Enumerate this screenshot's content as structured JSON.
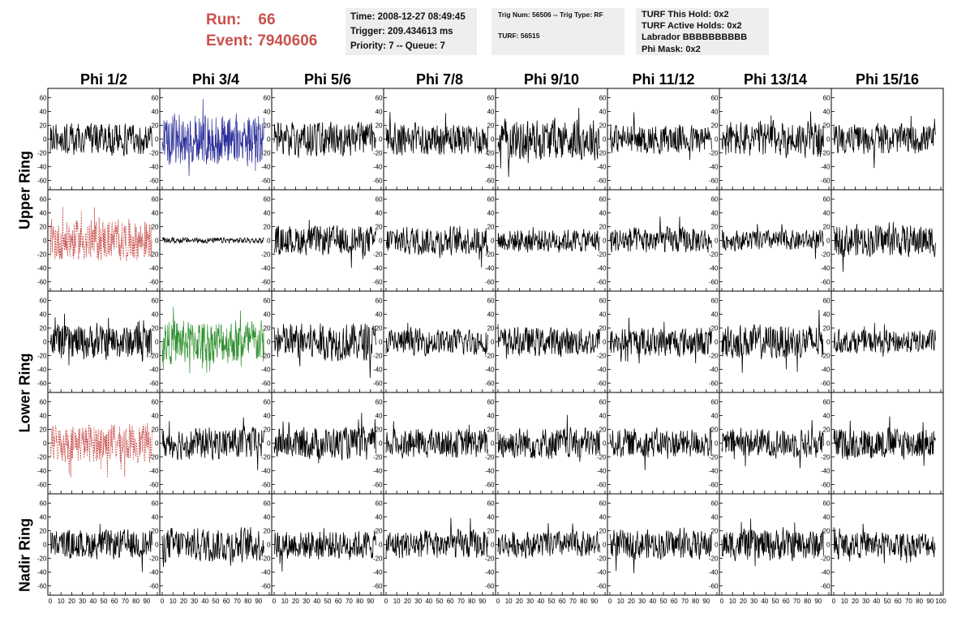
{
  "header": {
    "run_label": "Run:",
    "run_value": "66",
    "event_label": "Event:",
    "event_value": "7940606"
  },
  "info_time": {
    "time": "Time: 2008-12-27 08:49:45",
    "trigger": "Trigger: 209.434613 ms",
    "priority": "Priority: 7 -- Queue: 7"
  },
  "info_trig": {
    "trig": "Trig Num: 56506 -- Trig Type: RF",
    "turf": "TURF: 56515"
  },
  "info_turf": {
    "this_hold": "TURF This Hold: 0x2",
    "active_holds": "TURF Active Holds: 0x2",
    "labrador": "Labrador BBBBBBBBBB",
    "phi_mask": "Phi Mask: 0x2"
  },
  "columns": [
    "Phi 1/2",
    "Phi 3/4",
    "Phi 5/6",
    "Phi 7/8",
    "Phi 9/10",
    "Phi 11/12",
    "Phi 13/14",
    "Phi 15/16"
  ],
  "rings": [
    "Upper Ring",
    "Lower Ring",
    "Nadir Ring"
  ],
  "colors": {
    "trace": "#000000",
    "triggered_blue": "#2b2f9a",
    "triggered_green": "#2d8f2d",
    "triggered_red": "#c4403c",
    "header_red": "#c9504c",
    "info_bg": "#eeeeee"
  },
  "chart_data": {
    "type": "line",
    "grid": false,
    "xlim": [
      0,
      100
    ],
    "ylim": [
      -70,
      70
    ],
    "x_ticks": [
      0,
      10,
      20,
      30,
      40,
      50,
      60,
      70,
      80,
      90,
      100
    ],
    "y_ticks": [
      -60,
      -40,
      -20,
      0,
      20,
      40,
      60
    ],
    "x_tick_labels": [
      "0",
      "10",
      "20",
      "30",
      "40",
      "50",
      "60",
      "70",
      "80",
      "90",
      "100"
    ],
    "y_tick_labels": [
      "-60",
      "-40",
      "-20",
      "0",
      "20",
      "40",
      "60"
    ],
    "panel_rows": 5,
    "panel_cols": 8,
    "panels": [
      {
        "row": 0,
        "col": 0,
        "amp": 22,
        "style": "black"
      },
      {
        "row": 0,
        "col": 1,
        "amp": 36,
        "style": "blue"
      },
      {
        "row": 0,
        "col": 2,
        "amp": 24,
        "style": "black"
      },
      {
        "row": 0,
        "col": 3,
        "amp": 22,
        "style": "black"
      },
      {
        "row": 0,
        "col": 4,
        "amp": 28,
        "style": "black"
      },
      {
        "row": 0,
        "col": 5,
        "amp": 20,
        "style": "black"
      },
      {
        "row": 0,
        "col": 6,
        "amp": 25,
        "style": "black"
      },
      {
        "row": 0,
        "col": 7,
        "amp": 20,
        "style": "black"
      },
      {
        "row": 1,
        "col": 0,
        "amp": 28,
        "style": "red"
      },
      {
        "row": 1,
        "col": 1,
        "amp": 4,
        "style": "black"
      },
      {
        "row": 1,
        "col": 2,
        "amp": 20,
        "style": "black"
      },
      {
        "row": 1,
        "col": 3,
        "amp": 20,
        "style": "black"
      },
      {
        "row": 1,
        "col": 4,
        "amp": 16,
        "style": "black"
      },
      {
        "row": 1,
        "col": 5,
        "amp": 18,
        "style": "black"
      },
      {
        "row": 1,
        "col": 6,
        "amp": 14,
        "style": "black"
      },
      {
        "row": 1,
        "col": 7,
        "amp": 22,
        "style": "black"
      },
      {
        "row": 2,
        "col": 0,
        "amp": 24,
        "style": "black"
      },
      {
        "row": 2,
        "col": 1,
        "amp": 30,
        "style": "green"
      },
      {
        "row": 2,
        "col": 2,
        "amp": 26,
        "style": "black"
      },
      {
        "row": 2,
        "col": 3,
        "amp": 18,
        "style": "black"
      },
      {
        "row": 2,
        "col": 4,
        "amp": 20,
        "style": "black"
      },
      {
        "row": 2,
        "col": 5,
        "amp": 20,
        "style": "black"
      },
      {
        "row": 2,
        "col": 6,
        "amp": 24,
        "style": "black"
      },
      {
        "row": 2,
        "col": 7,
        "amp": 16,
        "style": "black"
      },
      {
        "row": 3,
        "col": 0,
        "amp": 26,
        "style": "red"
      },
      {
        "row": 3,
        "col": 1,
        "amp": 22,
        "style": "black"
      },
      {
        "row": 3,
        "col": 2,
        "amp": 22,
        "style": "black"
      },
      {
        "row": 3,
        "col": 3,
        "amp": 20,
        "style": "black"
      },
      {
        "row": 3,
        "col": 4,
        "amp": 22,
        "style": "black"
      },
      {
        "row": 3,
        "col": 5,
        "amp": 20,
        "style": "black"
      },
      {
        "row": 3,
        "col": 6,
        "amp": 20,
        "style": "black"
      },
      {
        "row": 3,
        "col": 7,
        "amp": 22,
        "style": "black"
      },
      {
        "row": 4,
        "col": 0,
        "amp": 20,
        "style": "black"
      },
      {
        "row": 4,
        "col": 1,
        "amp": 24,
        "style": "black"
      },
      {
        "row": 4,
        "col": 2,
        "amp": 20,
        "style": "black"
      },
      {
        "row": 4,
        "col": 3,
        "amp": 20,
        "style": "black"
      },
      {
        "row": 4,
        "col": 4,
        "amp": 18,
        "style": "black"
      },
      {
        "row": 4,
        "col": 5,
        "amp": 20,
        "style": "black"
      },
      {
        "row": 4,
        "col": 6,
        "amp": 22,
        "style": "black"
      },
      {
        "row": 4,
        "col": 7,
        "amp": 18,
        "style": "black"
      }
    ]
  }
}
